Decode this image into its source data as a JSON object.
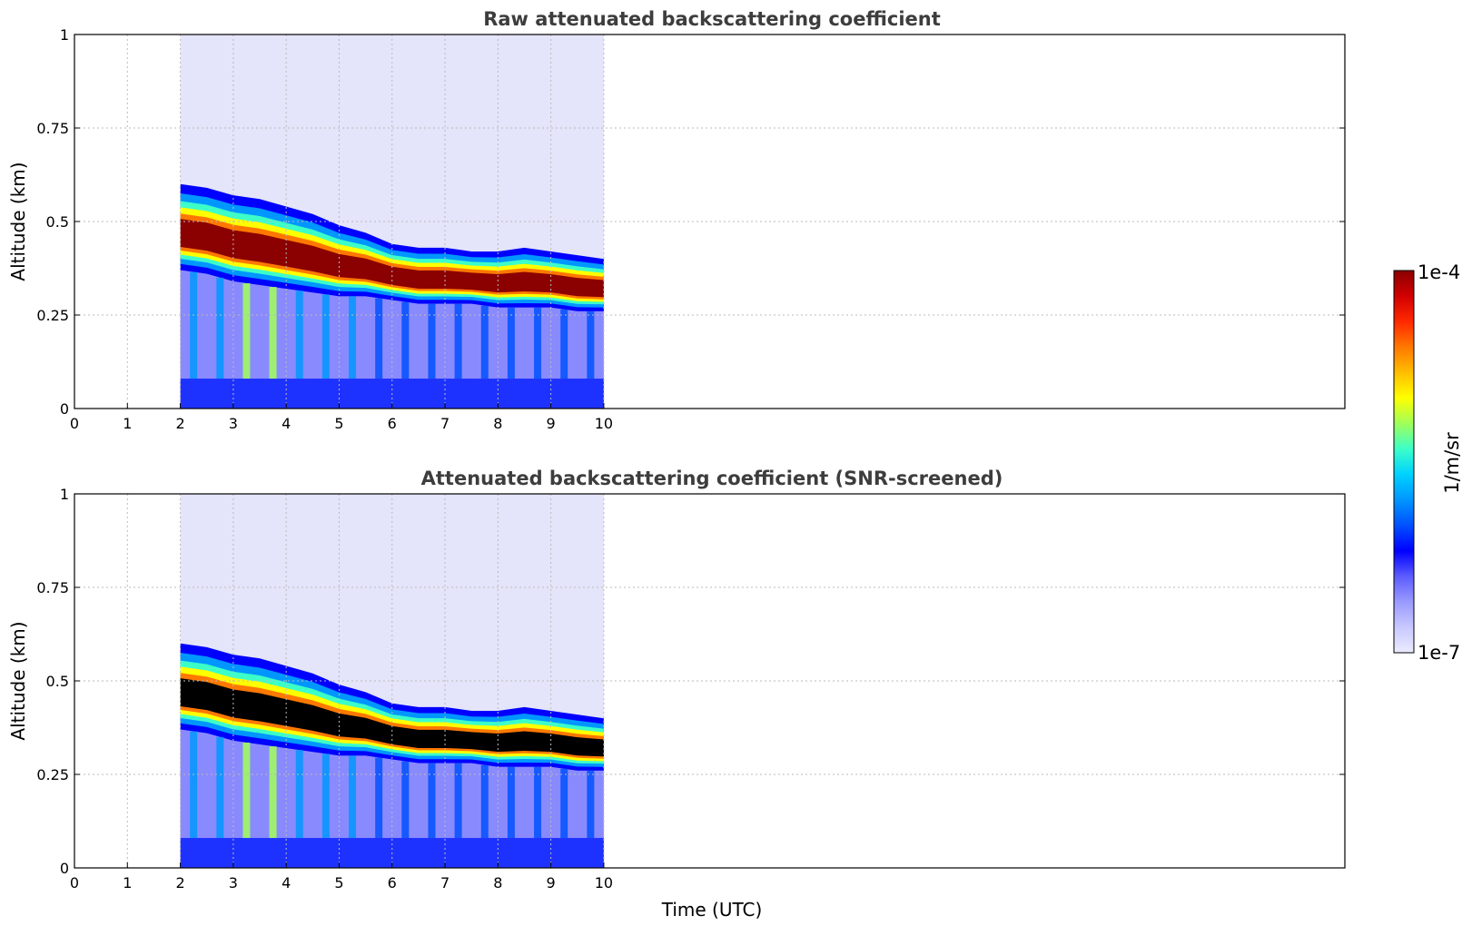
{
  "chart_data": [
    {
      "type": "heatmap",
      "title": "Raw attenuated backscattering coefficient",
      "xlabel": "",
      "ylabel": "Altitude (km)",
      "xlim": [
        0,
        24
      ],
      "ylim": [
        0,
        1
      ],
      "x_ticks": [
        "0",
        "1",
        "2",
        "3",
        "4",
        "5",
        "6",
        "7",
        "8",
        "9",
        "10"
      ],
      "y_ticks": [
        "0",
        "0.25",
        "0.5",
        "0.75",
        "1"
      ],
      "grid": true,
      "data_extent_x": [
        2,
        10
      ],
      "layer": {
        "time": [
          2,
          2.5,
          3,
          3.5,
          4,
          4.5,
          5,
          5.5,
          6,
          6.5,
          7,
          7.5,
          8,
          8.5,
          9,
          9.5,
          10
        ],
        "top_km": [
          0.6,
          0.59,
          0.57,
          0.56,
          0.54,
          0.52,
          0.49,
          0.47,
          0.44,
          0.43,
          0.43,
          0.42,
          0.42,
          0.43,
          0.42,
          0.41,
          0.4
        ],
        "bottom_km": [
          0.37,
          0.36,
          0.34,
          0.33,
          0.32,
          0.31,
          0.3,
          0.3,
          0.29,
          0.28,
          0.28,
          0.28,
          0.27,
          0.27,
          0.27,
          0.26,
          0.26
        ]
      },
      "saturated_core_color": "#8b0000"
    },
    {
      "type": "heatmap",
      "title": "Attenuated backscattering coefficient (SNR-screened)",
      "xlabel": "Time (UTC)",
      "ylabel": "Altitude (km)",
      "xlim": [
        0,
        24
      ],
      "ylim": [
        0,
        1
      ],
      "x_ticks": [
        "0",
        "1",
        "2",
        "3",
        "4",
        "5",
        "6",
        "7",
        "8",
        "9",
        "10"
      ],
      "y_ticks": [
        "0",
        "0.25",
        "0.5",
        "0.75",
        "1"
      ],
      "grid": true,
      "data_extent_x": [
        2,
        10
      ],
      "layer": {
        "time": [
          2,
          2.5,
          3,
          3.5,
          4,
          4.5,
          5,
          5.5,
          6,
          6.5,
          7,
          7.5,
          8,
          8.5,
          9,
          9.5,
          10
        ],
        "top_km": [
          0.6,
          0.59,
          0.57,
          0.56,
          0.54,
          0.52,
          0.49,
          0.47,
          0.44,
          0.43,
          0.43,
          0.42,
          0.42,
          0.43,
          0.42,
          0.41,
          0.4
        ],
        "bottom_km": [
          0.37,
          0.36,
          0.34,
          0.33,
          0.32,
          0.31,
          0.3,
          0.3,
          0.29,
          0.28,
          0.28,
          0.28,
          0.27,
          0.27,
          0.27,
          0.26,
          0.26
        ]
      },
      "saturated_core_color": "#000000"
    }
  ],
  "colorbar": {
    "label": "1/m/sr",
    "max_label": "1e-4",
    "min_label": "1e-7",
    "scale": "log",
    "range": [
      1e-07,
      0.0001
    ],
    "colormap": [
      "#ebebff",
      "#c8c8ff",
      "#9a9aff",
      "#5c5cff",
      "#0000ff",
      "#0050ff",
      "#0096ff",
      "#00d2ff",
      "#3cffc8",
      "#a0ff5a",
      "#ffff00",
      "#ffbe00",
      "#ff7800",
      "#ff2800",
      "#d20000",
      "#8b0000"
    ]
  },
  "colors": {
    "noise_fill": "#e4e4fa",
    "lower_fill": "#8a8aff",
    "near_ground_fill": "#1e32ff",
    "grid": "#bbbbbb"
  }
}
